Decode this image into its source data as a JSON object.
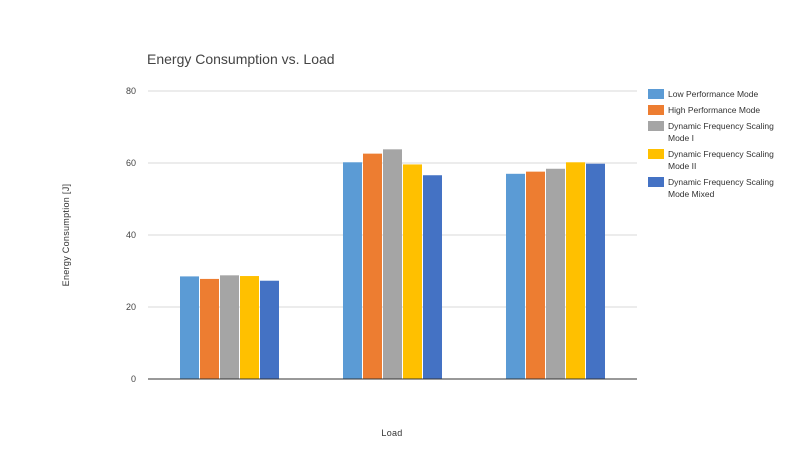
{
  "chart_data": {
    "type": "bar",
    "title": "Energy Consumption vs. Load",
    "xlabel": "Load",
    "ylabel": "Energy Consumption [J]",
    "ylim": [
      0,
      80
    ],
    "yticks": [
      0,
      20,
      40,
      60,
      80
    ],
    "grid": true,
    "legend_position": "right",
    "categories": [
      "",
      "",
      ""
    ],
    "series": [
      {
        "name": "Low Performance Mode",
        "color": "#5b9bd5",
        "values": [
          28.5,
          60.2,
          57.0
        ]
      },
      {
        "name": "High Performance Mode",
        "color": "#ed7d31",
        "values": [
          27.8,
          62.6,
          57.6
        ]
      },
      {
        "name": "Dynamic Frequency Scaling Mode I",
        "color": "#a5a5a5",
        "values": [
          28.8,
          63.8,
          58.4
        ]
      },
      {
        "name": "Dynamic Frequency Scaling Mode II",
        "color": "#ffc000",
        "values": [
          28.6,
          59.6,
          60.2
        ]
      },
      {
        "name": "Dynamic Frequency Scaling Mode Mixed",
        "color": "#4472c4",
        "values": [
          27.3,
          56.6,
          59.8
        ]
      }
    ]
  }
}
